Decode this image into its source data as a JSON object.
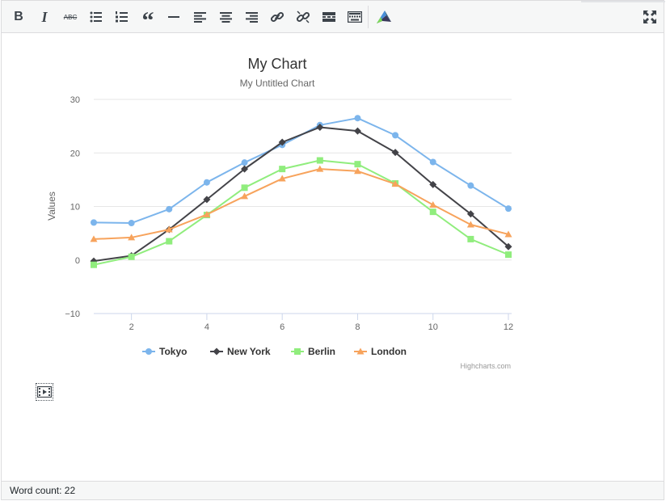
{
  "toolbar": {
    "buttons": [
      {
        "name": "bold",
        "icon": "bold-icon",
        "glyph": "B"
      },
      {
        "name": "italic",
        "icon": "italic-icon",
        "glyph": "I"
      },
      {
        "name": "strikethrough",
        "icon": "strikethrough-icon",
        "glyph": "ABC"
      },
      {
        "name": "bulleted-list",
        "icon": "bulleted-list-icon"
      },
      {
        "name": "numbered-list",
        "icon": "numbered-list-icon"
      },
      {
        "name": "blockquote",
        "icon": "blockquote-icon",
        "glyph": "“"
      },
      {
        "name": "horizontal-line",
        "icon": "horizontal-line-icon"
      },
      {
        "name": "align-left",
        "icon": "align-left-icon"
      },
      {
        "name": "align-center",
        "icon": "align-center-icon"
      },
      {
        "name": "align-right",
        "icon": "align-right-icon"
      },
      {
        "name": "insert-link",
        "icon": "link-icon"
      },
      {
        "name": "remove-link",
        "icon": "unlink-icon"
      },
      {
        "name": "read-more",
        "icon": "read-more-icon"
      },
      {
        "name": "toolbar-toggle",
        "icon": "keyboard-icon"
      },
      {
        "name": "chart-plugin",
        "icon": "chart-plugin-icon"
      },
      {
        "name": "fullscreen",
        "icon": "fullscreen-icon"
      }
    ]
  },
  "colors": {
    "tokyo": "#7cb5ec",
    "newyork": "#434348",
    "berlin": "#90ed7d",
    "london": "#f7a35c"
  },
  "chart_data": {
    "type": "line",
    "title": "My Chart",
    "subtitle": "My Untitled Chart",
    "ylabel": "Values",
    "xlabel": "",
    "xlim": [
      1,
      12
    ],
    "ylim": [
      -10,
      30
    ],
    "xticks": [
      "2",
      "4",
      "6",
      "8",
      "10",
      "12"
    ],
    "yticks": [
      "30",
      "20",
      "10",
      "0",
      "−10"
    ],
    "x": [
      1,
      2,
      3,
      4,
      5,
      6,
      7,
      8,
      9,
      10,
      11,
      12
    ],
    "grid": true,
    "legend_position": "bottom-center",
    "credits": "Highcharts.com",
    "series": [
      {
        "name": "Tokyo",
        "marker": "circle",
        "values": [
          7.0,
          6.9,
          9.5,
          14.5,
          18.2,
          21.5,
          25.2,
          26.5,
          23.3,
          18.3,
          13.9,
          9.6
        ]
      },
      {
        "name": "New York",
        "marker": "diamond",
        "values": [
          -0.2,
          0.8,
          5.7,
          11.3,
          17.0,
          22.0,
          24.8,
          24.1,
          20.1,
          14.1,
          8.6,
          2.5
        ]
      },
      {
        "name": "Berlin",
        "marker": "square",
        "values": [
          -0.9,
          0.6,
          3.5,
          8.4,
          13.5,
          17.0,
          18.6,
          17.9,
          14.3,
          9.0,
          3.9,
          1.0
        ]
      },
      {
        "name": "London",
        "marker": "triangle",
        "values": [
          3.9,
          4.2,
          5.7,
          8.5,
          11.9,
          15.2,
          17.0,
          16.6,
          14.2,
          10.3,
          6.6,
          4.8
        ]
      }
    ]
  },
  "statusbar": {
    "word_count": "Word count: 22"
  }
}
